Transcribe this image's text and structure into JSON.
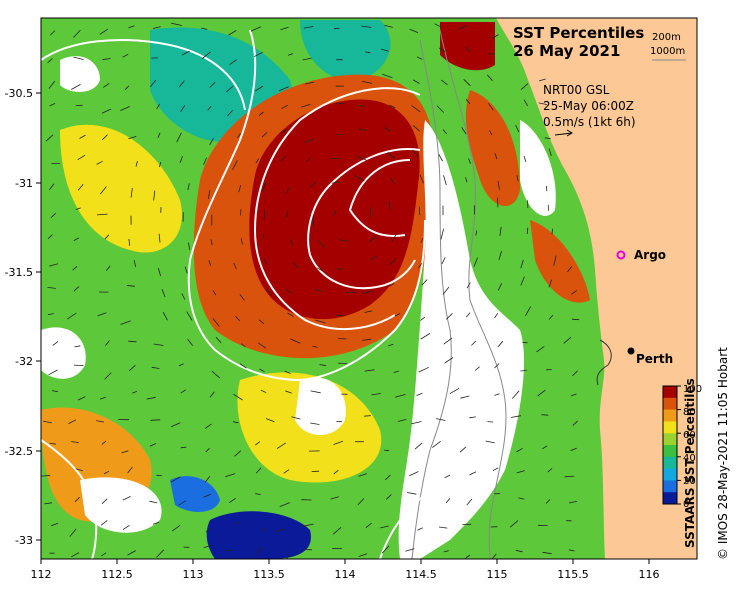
{
  "title": {
    "line1": "SST Percentiles",
    "line2": "26 May 2021"
  },
  "depth_legend": [
    "200m",
    "1000m"
  ],
  "current_info": {
    "model": "NRT00 GSL",
    "time": "25-May 06:00Z",
    "scale": "0.5m/s (1kt 6h)"
  },
  "places": {
    "argo": "Argo",
    "perth": "Perth"
  },
  "colorbar": {
    "label": "SSTAARS SST Percentiles",
    "ticks": [
      "100",
      "80",
      "60",
      "40",
      "20",
      "0"
    ],
    "colors": [
      "#a50000",
      "#d9530d",
      "#f09a1a",
      "#f2e01a",
      "#9ad230",
      "#3cc040",
      "#17b89a",
      "#14a8e0",
      "#1a6ee0",
      "#0a1a99"
    ]
  },
  "axes": {
    "x_ticks": [
      "112",
      "112.5",
      "113",
      "113.5",
      "114",
      "114.5",
      "115",
      "115.5",
      "116"
    ],
    "y_ticks": [
      "-30.5",
      "-31",
      "-31.5",
      "-32",
      "-32.5",
      "-33"
    ]
  },
  "credit": "© IMOS 28-May-2021 11:05 Hobart",
  "colors": {
    "land": "#fcc896",
    "contour": "#ffffff",
    "argo": "#e000e0"
  }
}
